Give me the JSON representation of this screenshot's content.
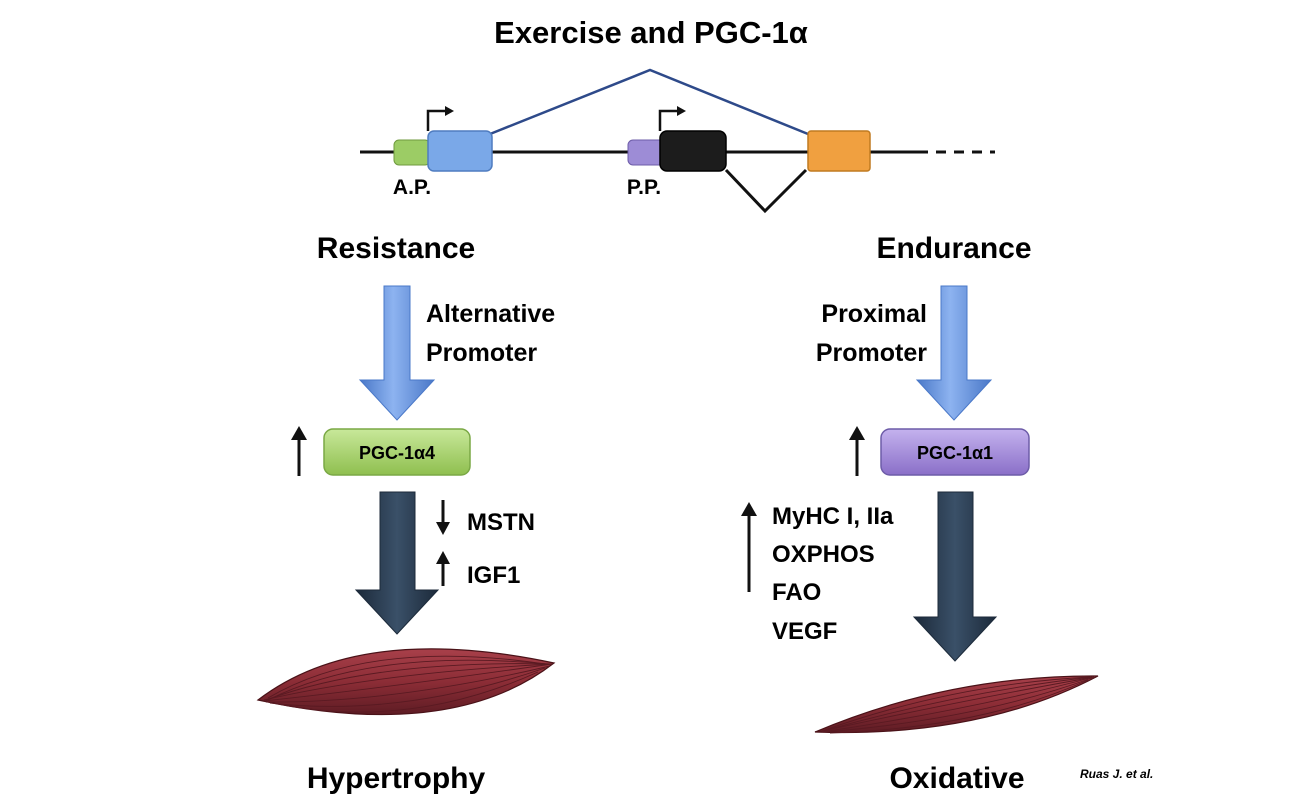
{
  "title": "Exercise and PGC-1α",
  "gene": {
    "alt_promoter_label": "A.P.",
    "prox_promoter_label": "P.P.",
    "colors": {
      "alt_exon": "#9ccc65",
      "exon2": "#7aa8e8",
      "prox_exon": "#9d8cd6",
      "black_exon": "#1c1c1c",
      "orange_exon": "#f0a040",
      "splice_line": "#2e4a8a"
    }
  },
  "left": {
    "heading": "Resistance",
    "promoter_line1": "Alternative",
    "promoter_line2": "Promoter",
    "isoform": "PGC-1α4",
    "isoform_color": "#a8d56b",
    "targets": [
      {
        "direction": "down",
        "label": "MSTN"
      },
      {
        "direction": "up",
        "label": "IGF1"
      }
    ],
    "outcome": "Hypertrophy"
  },
  "right": {
    "heading": "Endurance",
    "promoter_line1": "Proximal",
    "promoter_line2": "Promoter",
    "isoform": "PGC-1α1",
    "isoform_color": "#a48ed8",
    "targets": [
      "MyHC I, IIa",
      "OXPHOS",
      "FAO",
      "VEGF"
    ],
    "outcome": "Oxidative"
  },
  "citation": "Ruas J. et al.",
  "colors": {
    "blue_arrow": "#6b95e0",
    "dark_arrow": "#2a3c52",
    "muscle": "#8c2d36",
    "muscle_stripe": "#5a1a22"
  }
}
